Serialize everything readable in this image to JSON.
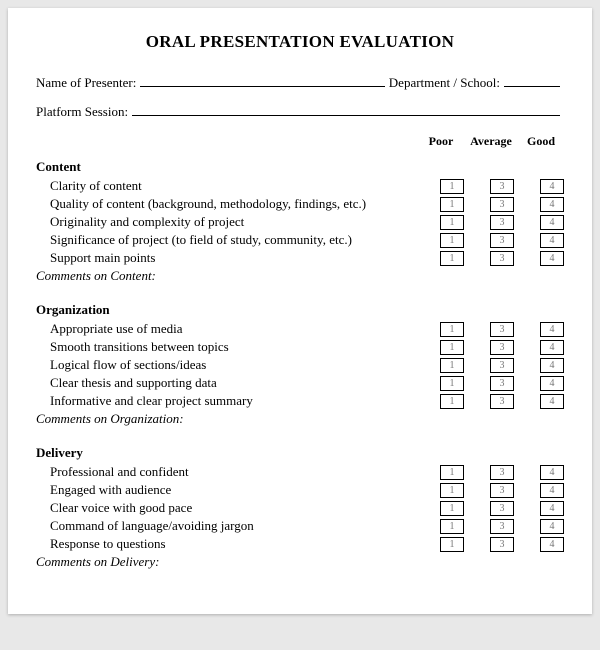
{
  "title": "ORAL PRESENTATION EVALUATION",
  "header": {
    "presenter_label": "Name of Presenter:",
    "department_label": "Department / School:",
    "session_label": "Platform Session:"
  },
  "columns": {
    "poor": "Poor",
    "average": "Average",
    "good": "Good"
  },
  "rating_values": {
    "poor": "1",
    "average": "3",
    "good": "4"
  },
  "sections": [
    {
      "title": "Content",
      "items": [
        "Clarity of content",
        "Quality of content (background, methodology, findings, etc.)",
        "Originality and complexity of project",
        "Significance of project (to field of study, community, etc.)",
        "Support main points"
      ],
      "comments_label": "Comments on Content:"
    },
    {
      "title": "Organization",
      "items": [
        "Appropriate use of media",
        "Smooth transitions between topics",
        "Logical flow of sections/ideas",
        "Clear thesis and supporting data",
        "Informative and clear project summary"
      ],
      "comments_label": "Comments on Organization:"
    },
    {
      "title": "Delivery",
      "items": [
        "Professional and confident",
        "Engaged with audience",
        "Clear voice with good pace",
        "Command of language/avoiding jargon",
        "Response to questions"
      ],
      "comments_label": "Comments on Delivery:"
    }
  ]
}
